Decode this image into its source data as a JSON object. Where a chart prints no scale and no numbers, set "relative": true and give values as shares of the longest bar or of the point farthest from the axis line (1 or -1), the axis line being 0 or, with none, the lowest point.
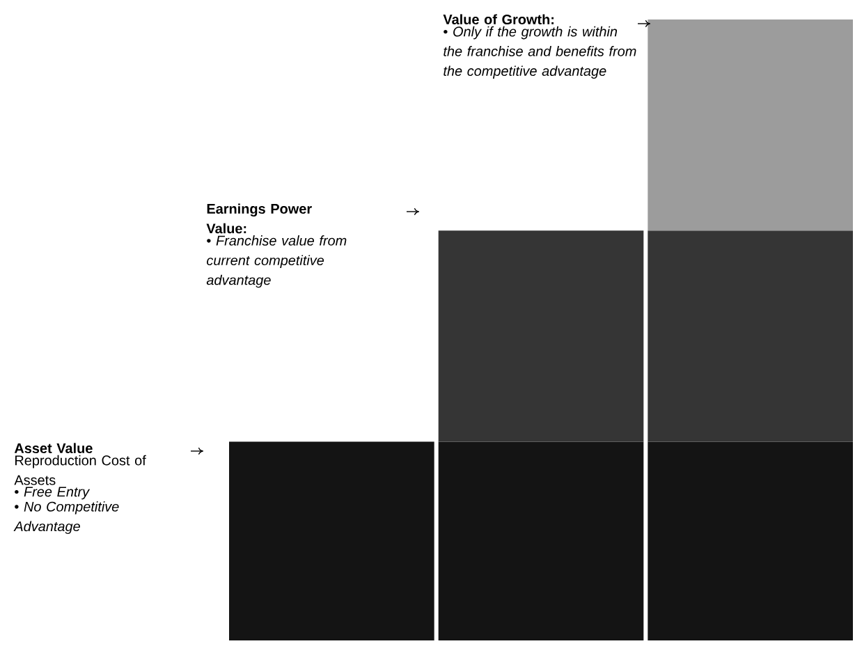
{
  "chart_data": {
    "type": "bar",
    "stacked": true,
    "relative": true,
    "categories": [
      null,
      null,
      null
    ],
    "series": [
      {
        "color": "#141414",
        "values": [
          0.32,
          0.32,
          0.32
        ]
      },
      {
        "color": "#353535",
        "values": [
          null,
          0.34,
          0.34
        ]
      },
      {
        "color": "#9c9c9c",
        "values": [
          null,
          null,
          0.34
        ]
      }
    ],
    "annotations": [
      "Asset Value",
      "Reproduction Cost of Assets",
      "• *Free Entry*",
      "• *No Competitive Advantage*",
      "Earnings Power Value:",
      "• *Franchise value from current competitive advantage*",
      "Value of Growth:",
      "• *Only if the growth is within the franchise and benefits from the competitive advantage*"
    ]
  }
}
